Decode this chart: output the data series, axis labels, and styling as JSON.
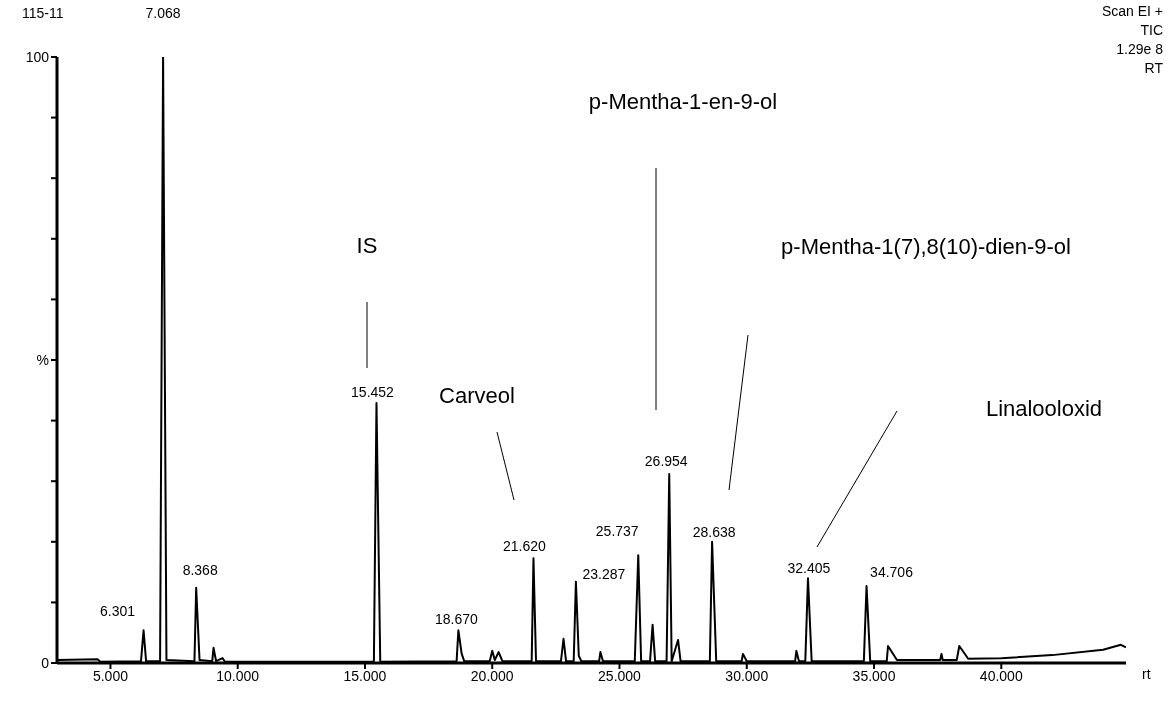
{
  "chart_data": {
    "type": "line",
    "title": "115-11",
    "xlabel": "rt",
    "x": [
      2.9,
      4.5,
      4.6,
      6.2,
      6.301,
      6.4,
      6.95,
      7.068,
      7.2,
      8.3,
      8.368,
      8.5,
      9.0,
      9.05,
      9.15,
      9.4,
      9.5,
      15.35,
      15.452,
      15.6,
      18.6,
      18.67,
      18.8,
      18.9,
      19.9,
      20.0,
      20.1,
      20.25,
      20.4,
      21.55,
      21.62,
      21.72,
      22.7,
      22.8,
      22.9,
      23.2,
      23.287,
      23.4,
      23.5,
      24.2,
      24.25,
      24.35,
      25.6,
      25.737,
      25.85,
      26.2,
      26.3,
      26.4,
      26.85,
      26.954,
      27.05,
      27.3,
      27.4,
      28.55,
      28.638,
      28.8,
      29.8,
      29.85,
      30.0,
      31.9,
      31.95,
      32.05,
      32.3,
      32.405,
      32.55,
      34.6,
      34.706,
      34.85,
      35.5,
      35.55,
      35.9,
      37.6,
      37.65,
      37.7,
      38.25,
      38.35,
      38.7,
      40.0,
      42.0,
      44.0,
      44.7,
      44.9
    ],
    "values": [
      0.5,
      0.6,
      0.2,
      0.3,
      5.4,
      0.3,
      0.3,
      100,
      0.5,
      0.3,
      12.4,
      0.5,
      0.3,
      2.5,
      0.3,
      0.8,
      0.2,
      0.2,
      42.9,
      0.2,
      0.3,
      5.4,
      1.5,
      0.3,
      0.3,
      2,
      0.5,
      1.8,
      0.3,
      0.3,
      17.3,
      0.3,
      0.3,
      4,
      0.3,
      0.3,
      13.4,
      1.2,
      0.3,
      0.3,
      1.8,
      0.3,
      0.3,
      17.8,
      0.3,
      0.3,
      6.3,
      0.3,
      0.3,
      31.2,
      0.3,
      3.8,
      0.3,
      0.3,
      20,
      0.3,
      0.3,
      1.5,
      0.3,
      0.3,
      2,
      0.3,
      0.3,
      14,
      0.3,
      0.3,
      12.7,
      0.3,
      0.3,
      2.8,
      0.5,
      0.5,
      1.5,
      0.5,
      0.5,
      2.8,
      0.7,
      0.8,
      1.3,
      2.2,
      3,
      2.6
    ],
    "color": "#000000",
    "xlim": [
      2.9,
      44.9
    ],
    "xticks": [
      {
        "value": 5,
        "label": "5.000"
      },
      {
        "value": 10,
        "label": "10.000"
      },
      {
        "value": 15,
        "label": "15.000"
      },
      {
        "value": 20,
        "label": "20.000"
      },
      {
        "value": 25,
        "label": "25.000"
      },
      {
        "value": 30,
        "label": "30.000"
      },
      {
        "value": 35,
        "label": "35.000"
      },
      {
        "value": 40,
        "label": "40.000"
      }
    ],
    "ylim": [
      0,
      100
    ],
    "yticks": [
      0,
      {
        "value": 10,
        "label": null
      },
      {
        "value": 20,
        "label": null
      },
      {
        "value": 30,
        "label": null
      },
      {
        "value": 40,
        "label": null
      },
      {
        "value": 50,
        "label": "%"
      },
      {
        "value": 60,
        "label": null
      },
      {
        "value": 70,
        "label": null
      },
      {
        "value": 80,
        "label": null
      },
      {
        "value": 90,
        "label": null
      },
      100
    ],
    "annotations": [
      "Scan EI +",
      "TIC",
      "1.29e 8",
      "RT",
      "IS",
      "Carveol",
      "p-Mentha-1-en-9-ol",
      "p-Mentha-1(7),8(10)-dien-9-ol",
      "Linalooloxid",
      {
        "text": "6.301",
        "x": 6.301,
        "y": 5.4
      },
      {
        "text": "7.068",
        "x": 7.068,
        "y": 100
      },
      {
        "text": "8.368",
        "x": 8.368,
        "y": 12.4
      },
      {
        "text": "15.452",
        "x": 15.452,
        "y": 42.9
      },
      {
        "text": "18.670",
        "x": 18.67,
        "y": 5.4
      },
      {
        "text": "21.620",
        "x": 21.62,
        "y": 17.3
      },
      {
        "text": "23.287",
        "x": 23.287,
        "y": 13.4
      },
      {
        "text": "25.737",
        "x": 25.737,
        "y": 17.8
      },
      {
        "text": "26.954",
        "x": 26.954,
        "y": 31.2
      },
      {
        "text": "28.638",
        "x": 28.638,
        "y": 20
      },
      {
        "text": "32.405",
        "x": 32.405,
        "y": 14
      },
      {
        "text": "34.706",
        "x": 34.706,
        "y": 12.7
      }
    ]
  }
}
